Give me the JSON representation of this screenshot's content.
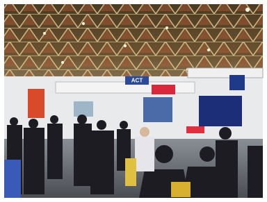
{
  "signs": [
    {
      "label": "ACT"
    }
  ]
}
